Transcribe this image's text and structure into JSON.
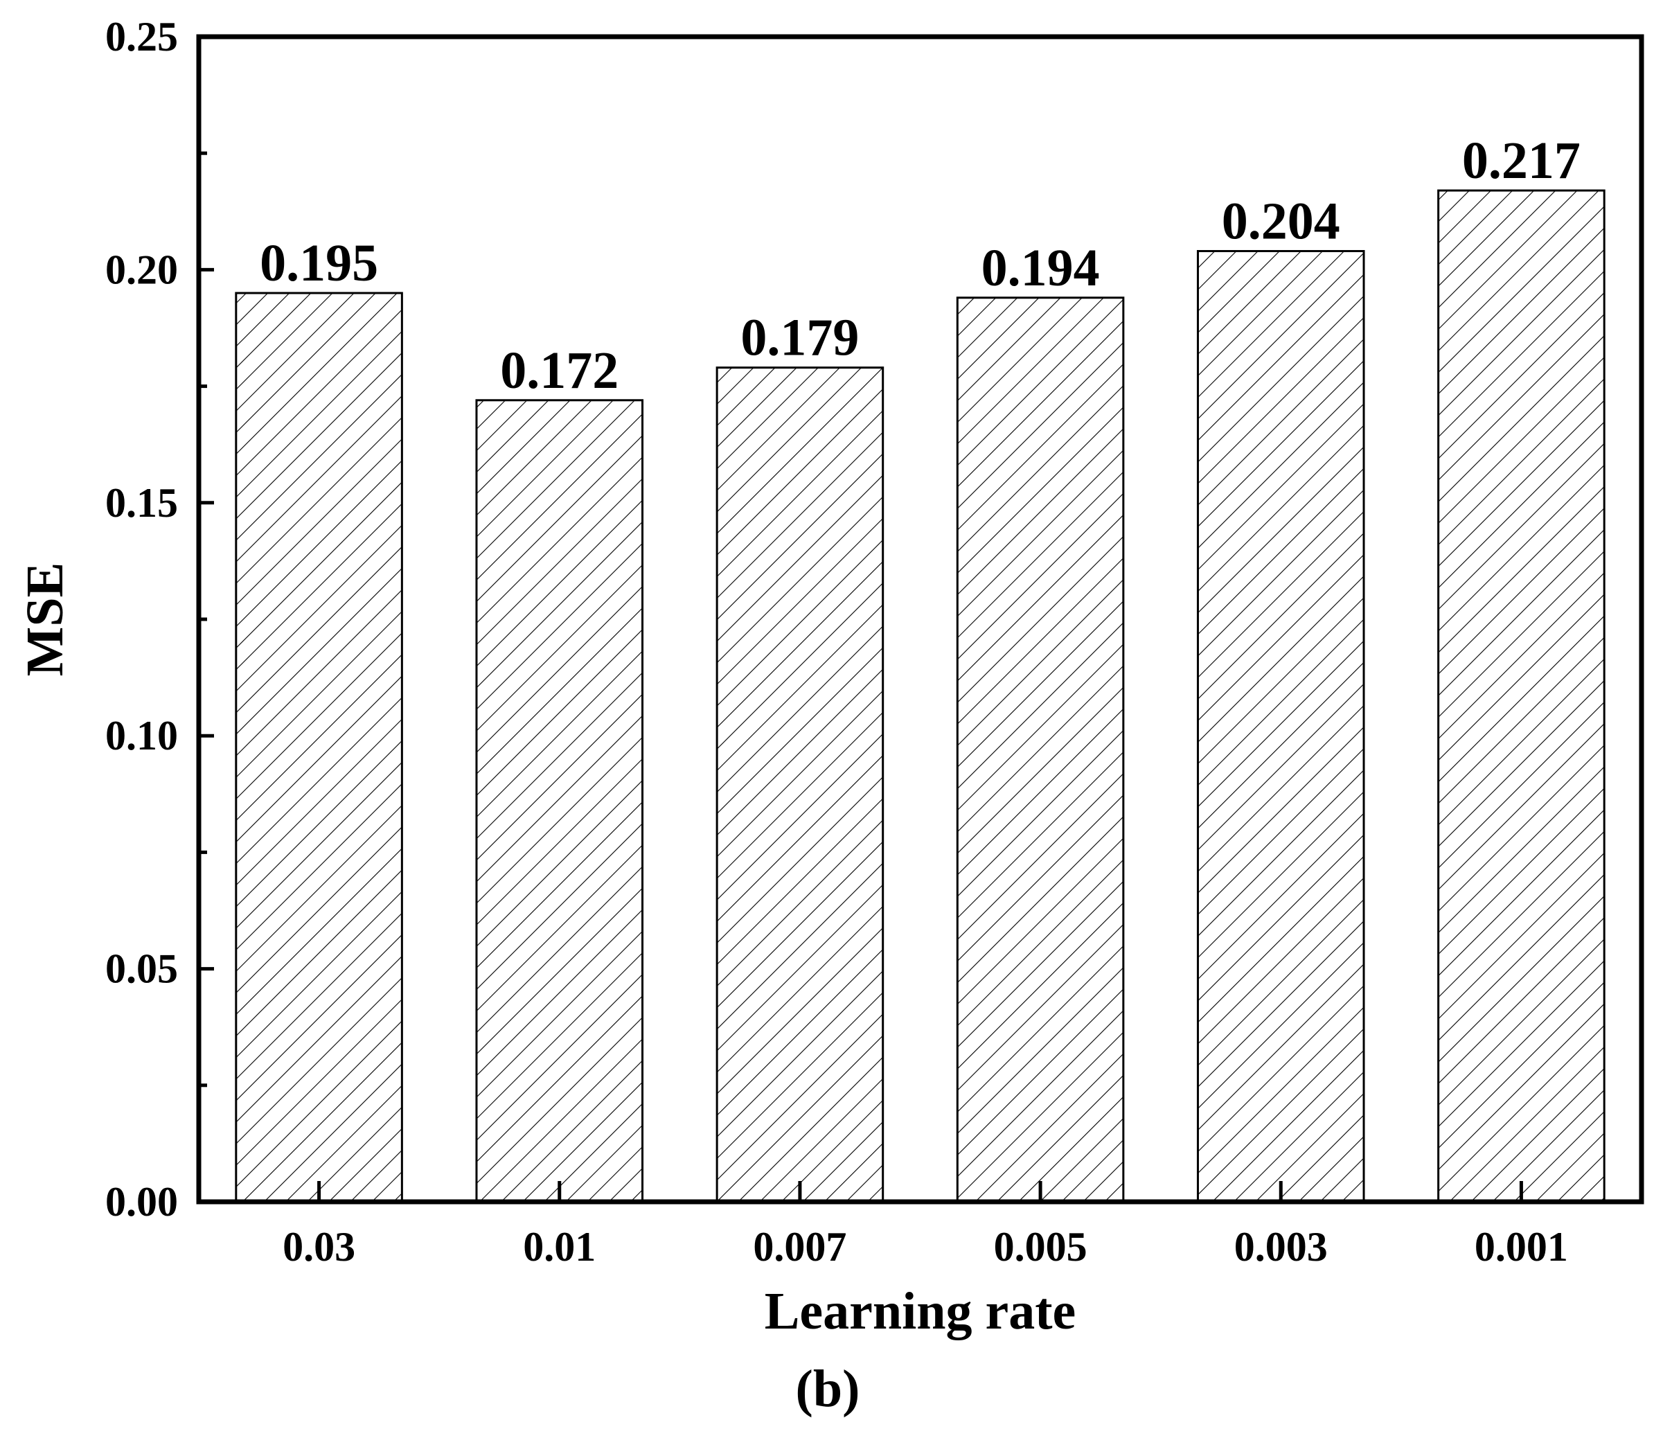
{
  "chart_data": {
    "type": "bar",
    "categories": [
      "0.03",
      "0.01",
      "0.007",
      "0.005",
      "0.003",
      "0.001"
    ],
    "values": [
      0.195,
      0.172,
      0.179,
      0.194,
      0.204,
      0.217
    ],
    "value_labels": [
      "0.195",
      "0.172",
      "0.179",
      "0.194",
      "0.204",
      "0.217"
    ],
    "xlabel": "Learning rate",
    "ylabel": "MSE",
    "ylim": [
      0,
      0.25
    ],
    "yticks": [
      0.0,
      0.05,
      0.1,
      0.15,
      0.2,
      0.25
    ],
    "ytick_labels": [
      "0.00",
      "0.05",
      "0.10",
      "0.15",
      "0.20",
      "0.25"
    ],
    "bar_fill": "diagonal-hatch",
    "colors": {
      "bar_edge": "#000000",
      "hatch": "#000000",
      "background": "#ffffff"
    },
    "grid": false
  },
  "caption": "(b)"
}
